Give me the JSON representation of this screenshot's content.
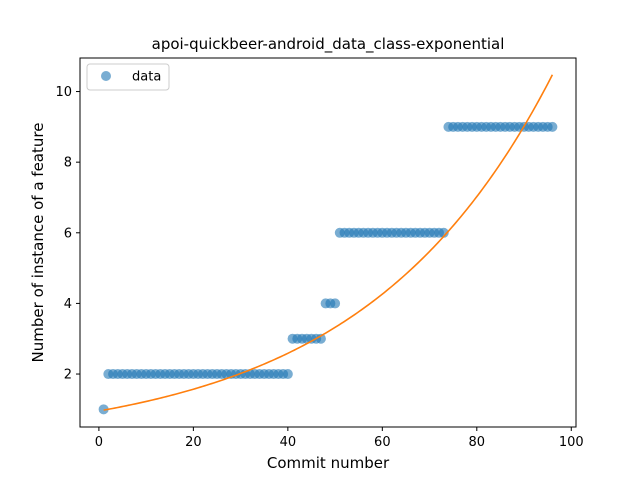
{
  "chart_data": {
    "type": "scatter",
    "title": "apoi-quickbeer-android_data_class-exponential",
    "xlabel": "Commit number",
    "ylabel": "Number of instance of a feature",
    "xlim": [
      -4,
      101
    ],
    "ylim": [
      0.5,
      10.95
    ],
    "xticks": [
      0,
      20,
      40,
      60,
      80,
      100
    ],
    "yticks": [
      2,
      4,
      6,
      8,
      10
    ],
    "grid": false,
    "legend": {
      "position": "top-left",
      "entries": [
        "data"
      ]
    },
    "colors": {
      "data": "#1f77b4",
      "fit": "#ff7f0e"
    },
    "series": [
      {
        "name": "data",
        "kind": "scatter",
        "x": [
          1,
          2,
          3,
          4,
          5,
          6,
          7,
          8,
          9,
          10,
          11,
          12,
          13,
          14,
          15,
          16,
          17,
          18,
          19,
          20,
          21,
          22,
          23,
          24,
          25,
          26,
          27,
          28,
          29,
          30,
          31,
          32,
          33,
          34,
          35,
          36,
          37,
          38,
          39,
          40,
          41,
          42,
          43,
          44,
          45,
          46,
          47,
          48,
          49,
          50,
          51,
          52,
          53,
          54,
          55,
          56,
          57,
          58,
          59,
          60,
          61,
          62,
          63,
          64,
          65,
          66,
          67,
          68,
          69,
          70,
          71,
          72,
          73,
          74,
          75,
          76,
          77,
          78,
          79,
          80,
          81,
          82,
          83,
          84,
          85,
          86,
          87,
          88,
          89,
          90,
          91,
          92,
          93,
          94,
          95,
          96
        ],
        "y": [
          1,
          2,
          2,
          2,
          2,
          2,
          2,
          2,
          2,
          2,
          2,
          2,
          2,
          2,
          2,
          2,
          2,
          2,
          2,
          2,
          2,
          2,
          2,
          2,
          2,
          2,
          2,
          2,
          2,
          2,
          2,
          2,
          2,
          2,
          2,
          2,
          2,
          2,
          2,
          2,
          3,
          3,
          3,
          3,
          3,
          3,
          3,
          4,
          4,
          4,
          6,
          6,
          6,
          6,
          6,
          6,
          6,
          6,
          6,
          6,
          6,
          6,
          6,
          6,
          6,
          6,
          6,
          6,
          6,
          6,
          6,
          6,
          6,
          9,
          9,
          9,
          9,
          9,
          9,
          9,
          9,
          9,
          9,
          9,
          9,
          9,
          9,
          9,
          9,
          9,
          9,
          9,
          9,
          9,
          9,
          9
        ]
      },
      {
        "kind": "line",
        "model": "exponential",
        "a": 0.953,
        "b": 0.02497,
        "x_range": [
          1,
          96
        ]
      }
    ]
  }
}
